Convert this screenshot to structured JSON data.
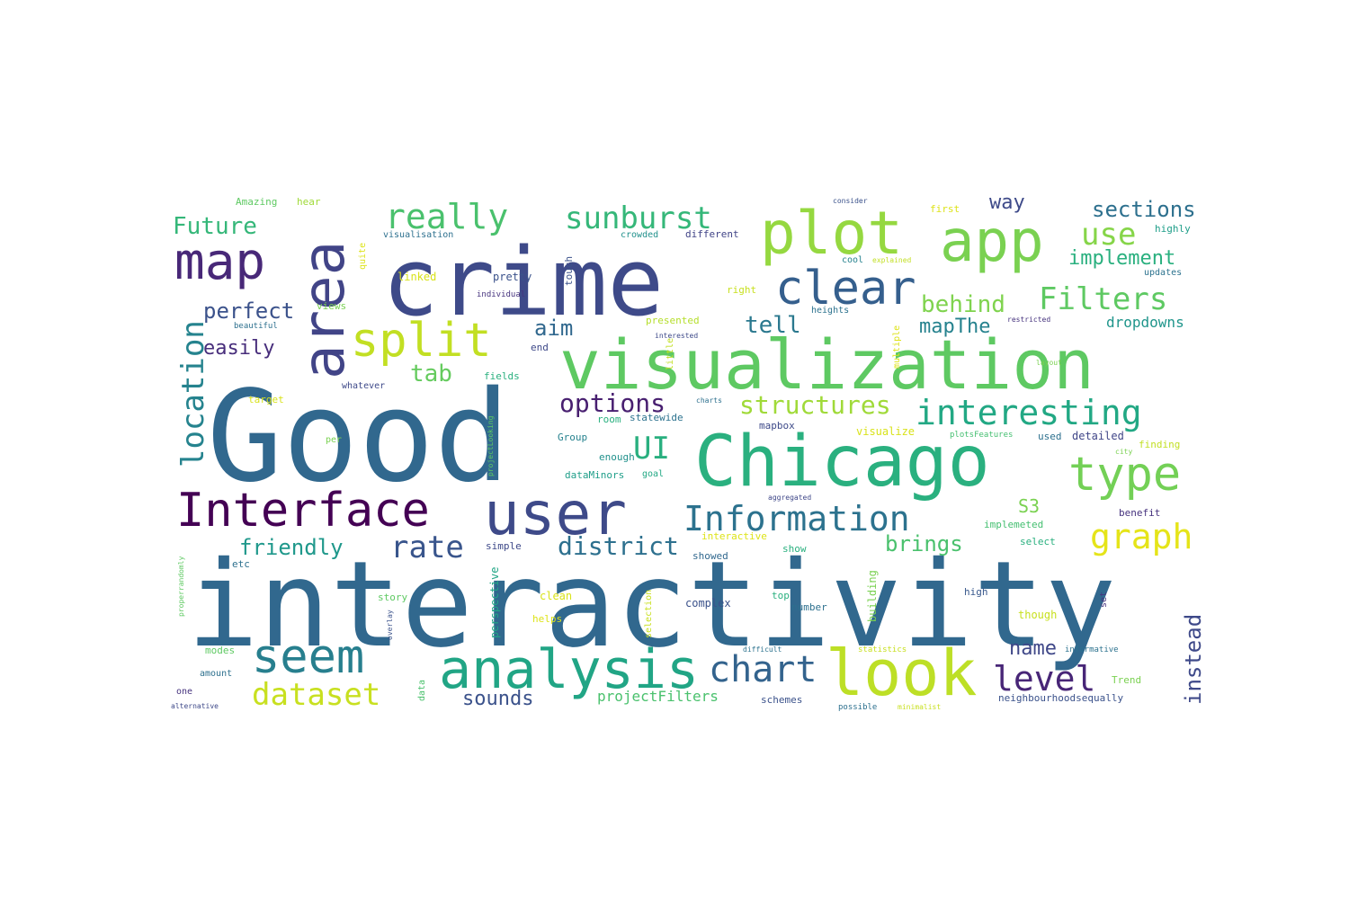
{
  "words": [
    {
      "text": "interactivity",
      "color": "#31688e"
    },
    {
      "text": "Good",
      "color": "#31688e"
    },
    {
      "text": "crime",
      "color": "#3e4a89"
    },
    {
      "text": "visualization",
      "color": "#5ec962"
    },
    {
      "text": "Chicago",
      "color": "#2ab07f"
    },
    {
      "text": "plot",
      "color": "#95d840"
    },
    {
      "text": "user",
      "color": "#3e4a89"
    },
    {
      "text": "analysis",
      "color": "#21a585"
    },
    {
      "text": "look",
      "color": "#bddf26"
    },
    {
      "text": "Interface",
      "color": "#440154"
    },
    {
      "text": "area",
      "color": "#414487"
    },
    {
      "text": "map",
      "color": "#482878"
    },
    {
      "text": "app",
      "color": "#7ad151"
    },
    {
      "text": "split",
      "color": "#c2df23"
    },
    {
      "text": "clear",
      "color": "#355f8d"
    },
    {
      "text": "type",
      "color": "#73d056"
    },
    {
      "text": "Information",
      "color": "#2c728e"
    },
    {
      "text": "seem",
      "color": "#277f8e"
    },
    {
      "text": "chart",
      "color": "#33638d"
    },
    {
      "text": "interesting",
      "color": "#22a884"
    },
    {
      "text": "location",
      "color": "#25838e"
    },
    {
      "text": "dataset",
      "color": "#c8e020"
    },
    {
      "text": "graph",
      "color": "#e5e419"
    },
    {
      "text": "level",
      "color": "#482677"
    },
    {
      "text": "really",
      "color": "#4ac16d"
    },
    {
      "text": "sunburst",
      "color": "#35b779"
    },
    {
      "text": "Filters",
      "color": "#5ec962"
    },
    {
      "text": "UI",
      "color": "#29af7f"
    },
    {
      "text": "rate",
      "color": "#39558c"
    },
    {
      "text": "structures",
      "color": "#a0da39"
    },
    {
      "text": "options",
      "color": "#481f70"
    },
    {
      "text": "district",
      "color": "#2d708e"
    },
    {
      "text": "use",
      "color": "#86d549"
    },
    {
      "text": "Future",
      "color": "#35b779"
    },
    {
      "text": "behind",
      "color": "#7fd34e"
    },
    {
      "text": "sections",
      "color": "#2d708e"
    },
    {
      "text": "perfect",
      "color": "#3b528b"
    },
    {
      "text": "tell",
      "color": "#2a788e"
    },
    {
      "text": "instead",
      "color": "#3e4989"
    },
    {
      "text": "friendly",
      "color": "#1f988b"
    },
    {
      "text": "brings",
      "color": "#4ac16d"
    },
    {
      "text": "name",
      "color": "#3f4788"
    },
    {
      "text": "implement",
      "color": "#2ab07f"
    },
    {
      "text": "mapThe",
      "color": "#26828e"
    },
    {
      "text": "tab",
      "color": "#65cb5e"
    },
    {
      "text": "aim",
      "color": "#31688e"
    },
    {
      "text": "easily",
      "color": "#472d7b"
    },
    {
      "text": "way",
      "color": "#3e4a89"
    },
    {
      "text": "sounds",
      "color": "#3b528b"
    },
    {
      "text": "S3",
      "color": "#7ad151"
    },
    {
      "text": "dropdowns",
      "color": "#1f958b"
    },
    {
      "text": "projectFilters",
      "color": "#4ac16d"
    },
    {
      "text": "Amazing",
      "color": "#5ec962"
    },
    {
      "text": "hear",
      "color": "#a0da39"
    },
    {
      "text": "visualisation",
      "color": "#2d708e"
    },
    {
      "text": "crowded",
      "color": "#21918c"
    },
    {
      "text": "different",
      "color": "#414487"
    },
    {
      "text": "first",
      "color": "#dde318"
    },
    {
      "text": "highly",
      "color": "#1f9e89"
    },
    {
      "text": "consider",
      "color": "#3b528b"
    },
    {
      "text": "linked",
      "color": "#d8e219"
    },
    {
      "text": "pretty",
      "color": "#3b528b"
    },
    {
      "text": "cool",
      "color": "#26828e"
    },
    {
      "text": "explained",
      "color": "#c2df23"
    },
    {
      "text": "updates",
      "color": "#2c728e"
    },
    {
      "text": "individual",
      "color": "#46337e"
    },
    {
      "text": "right",
      "color": "#c8e020"
    },
    {
      "text": "views",
      "color": "#7ad151"
    },
    {
      "text": "heights",
      "color": "#2c728e"
    },
    {
      "text": "beautiful",
      "color": "#2d708e"
    },
    {
      "text": "presented",
      "color": "#b5de2b"
    },
    {
      "text": "restricted",
      "color": "#46337e"
    },
    {
      "text": "interested",
      "color": "#3e4a89"
    },
    {
      "text": "end",
      "color": "#3e4989"
    },
    {
      "text": "fields",
      "color": "#2ab07f"
    },
    {
      "text": "layout",
      "color": "#7ad151"
    },
    {
      "text": "whatever",
      "color": "#3e4989"
    },
    {
      "text": "target",
      "color": "#d8e219"
    },
    {
      "text": "charts",
      "color": "#2d708e"
    },
    {
      "text": "room",
      "color": "#2ab07f"
    },
    {
      "text": "statewide",
      "color": "#2c728e"
    },
    {
      "text": "mapbox",
      "color": "#3e4a89"
    },
    {
      "text": "visualize",
      "color": "#d8e219"
    },
    {
      "text": "plotsFeatures",
      "color": "#44bf70"
    },
    {
      "text": "used",
      "color": "#2d708e"
    },
    {
      "text": "detailed",
      "color": "#404688"
    },
    {
      "text": "city",
      "color": "#7ad151"
    },
    {
      "text": "finding",
      "color": "#c2df23"
    },
    {
      "text": "per",
      "color": "#7ad151"
    },
    {
      "text": "Group",
      "color": "#26828e"
    },
    {
      "text": "enough",
      "color": "#21918c"
    },
    {
      "text": "dataMinors",
      "color": "#1f9e89"
    },
    {
      "text": "goal",
      "color": "#22a884"
    },
    {
      "text": "aggregated",
      "color": "#3f4788"
    },
    {
      "text": "benefit",
      "color": "#46327e"
    },
    {
      "text": "implemeted",
      "color": "#44bf70"
    },
    {
      "text": "interactive",
      "color": "#dde318"
    },
    {
      "text": "select",
      "color": "#2ab07f"
    },
    {
      "text": "simple",
      "color": "#3e4989"
    },
    {
      "text": "show",
      "color": "#2ab07f"
    },
    {
      "text": "showed",
      "color": "#31688e"
    },
    {
      "text": "etc",
      "color": "#2d708e"
    },
    {
      "text": "story",
      "color": "#5ec962"
    },
    {
      "text": "clean",
      "color": "#d8e219"
    },
    {
      "text": "complex",
      "color": "#3b528b"
    },
    {
      "text": "top",
      "color": "#2ab07f"
    },
    {
      "text": "number",
      "color": "#2d708e"
    },
    {
      "text": "high",
      "color": "#38588c"
    },
    {
      "text": "though",
      "color": "#c8e020"
    },
    {
      "text": "helps",
      "color": "#dde318"
    },
    {
      "text": "modes",
      "color": "#5ec962"
    },
    {
      "text": "difficult",
      "color": "#2c728e"
    },
    {
      "text": "statistics",
      "color": "#c8e020"
    },
    {
      "text": "informative",
      "color": "#2c728e"
    },
    {
      "text": "amount",
      "color": "#2d708e"
    },
    {
      "text": "Trend",
      "color": "#7ad151"
    },
    {
      "text": "one",
      "color": "#46337e"
    },
    {
      "text": "schemes",
      "color": "#3b528b"
    },
    {
      "text": "neighbourhoodsequally",
      "color": "#3b528b"
    },
    {
      "text": "alternative",
      "color": "#3e4989"
    },
    {
      "text": "possible",
      "color": "#2d708e"
    },
    {
      "text": "minimalist",
      "color": "#c8e020"
    },
    {
      "text": "touch",
      "color": "#3b528b"
    },
    {
      "text": "quite",
      "color": "#dde318"
    },
    {
      "text": "multiple",
      "color": "#dde318"
    },
    {
      "text": "little",
      "color": "#c2df23"
    },
    {
      "text": "selection",
      "color": "#c8e020"
    },
    {
      "text": "building",
      "color": "#7ad151"
    },
    {
      "text": "set",
      "color": "#46337e"
    },
    {
      "text": "perspective",
      "color": "#21a585"
    },
    {
      "text": "data",
      "color": "#4ac16d"
    },
    {
      "text": "overlay",
      "color": "#3b528b"
    },
    {
      "text": "projectLooking",
      "color": "#5ec962"
    },
    {
      "text": "properrandomly",
      "color": "#5ec962"
    }
  ]
}
